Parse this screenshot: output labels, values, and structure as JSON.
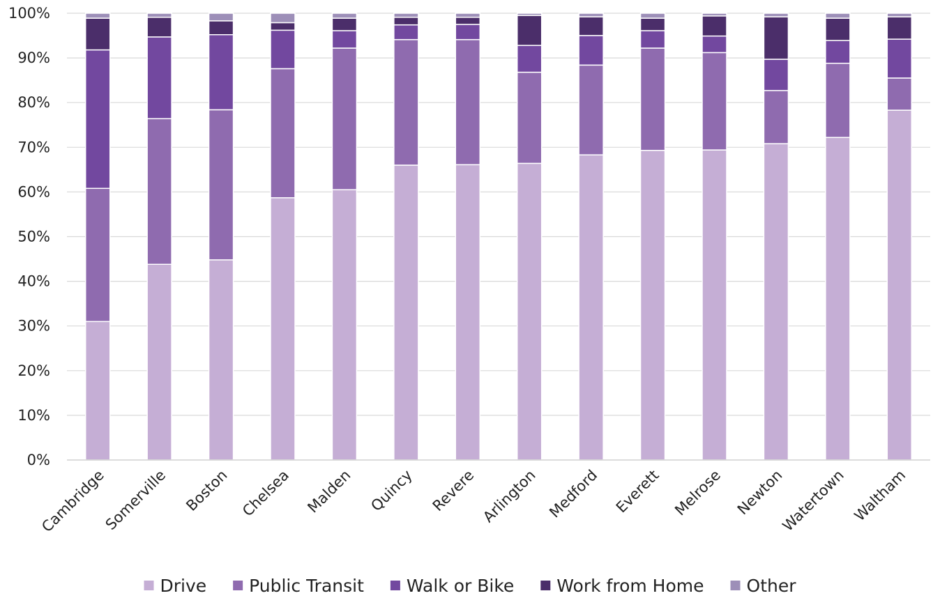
{
  "chart_data": {
    "type": "bar",
    "stacked": true,
    "percent": true,
    "title": "",
    "xlabel": "",
    "ylabel": "",
    "ylim": [
      0,
      100
    ],
    "y_ticks": [
      "0%",
      "10%",
      "20%",
      "30%",
      "40%",
      "50%",
      "60%",
      "70%",
      "80%",
      "90%",
      "100%"
    ],
    "grid": true,
    "legend_position": "bottom",
    "categories": [
      "Cambridge",
      "Somerville",
      "Boston",
      "Chelsea",
      "Malden",
      "Quincy",
      "Revere",
      "Arlington",
      "Medford",
      "Everett",
      "Melrose",
      "Newton",
      "Watertown",
      "Waltham"
    ],
    "series": [
      {
        "name": "Drive",
        "color": "#c5aed5",
        "values": [
          31.0,
          43.8,
          44.8,
          58.7,
          60.5,
          66.0,
          66.1,
          66.4,
          68.3,
          69.3,
          69.4,
          70.8,
          72.2,
          78.3
        ]
      },
      {
        "name": "Public Transit",
        "color": "#8f6baf",
        "values": [
          29.8,
          32.6,
          33.6,
          28.9,
          31.7,
          28.1,
          28.0,
          20.4,
          20.1,
          22.9,
          21.8,
          11.9,
          16.6,
          7.2
        ]
      },
      {
        "name": "Walk or Bike",
        "color": "#72489f",
        "values": [
          31.0,
          18.3,
          16.8,
          8.6,
          3.9,
          3.3,
          3.4,
          6.0,
          6.6,
          3.9,
          3.7,
          7.0,
          5.1,
          8.7
        ]
      },
      {
        "name": "Work from Home",
        "color": "#4b2e6a",
        "values": [
          7.1,
          4.4,
          3.1,
          1.7,
          2.8,
          1.7,
          1.6,
          6.7,
          4.2,
          2.8,
          4.5,
          9.5,
          5.0,
          5.0
        ]
      },
      {
        "name": "Other",
        "color": "#9d8fb8",
        "values": [
          1.1,
          0.9,
          1.7,
          2.1,
          1.1,
          0.9,
          0.9,
          0.5,
          0.8,
          1.1,
          0.6,
          0.8,
          1.1,
          0.8
        ]
      }
    ]
  }
}
